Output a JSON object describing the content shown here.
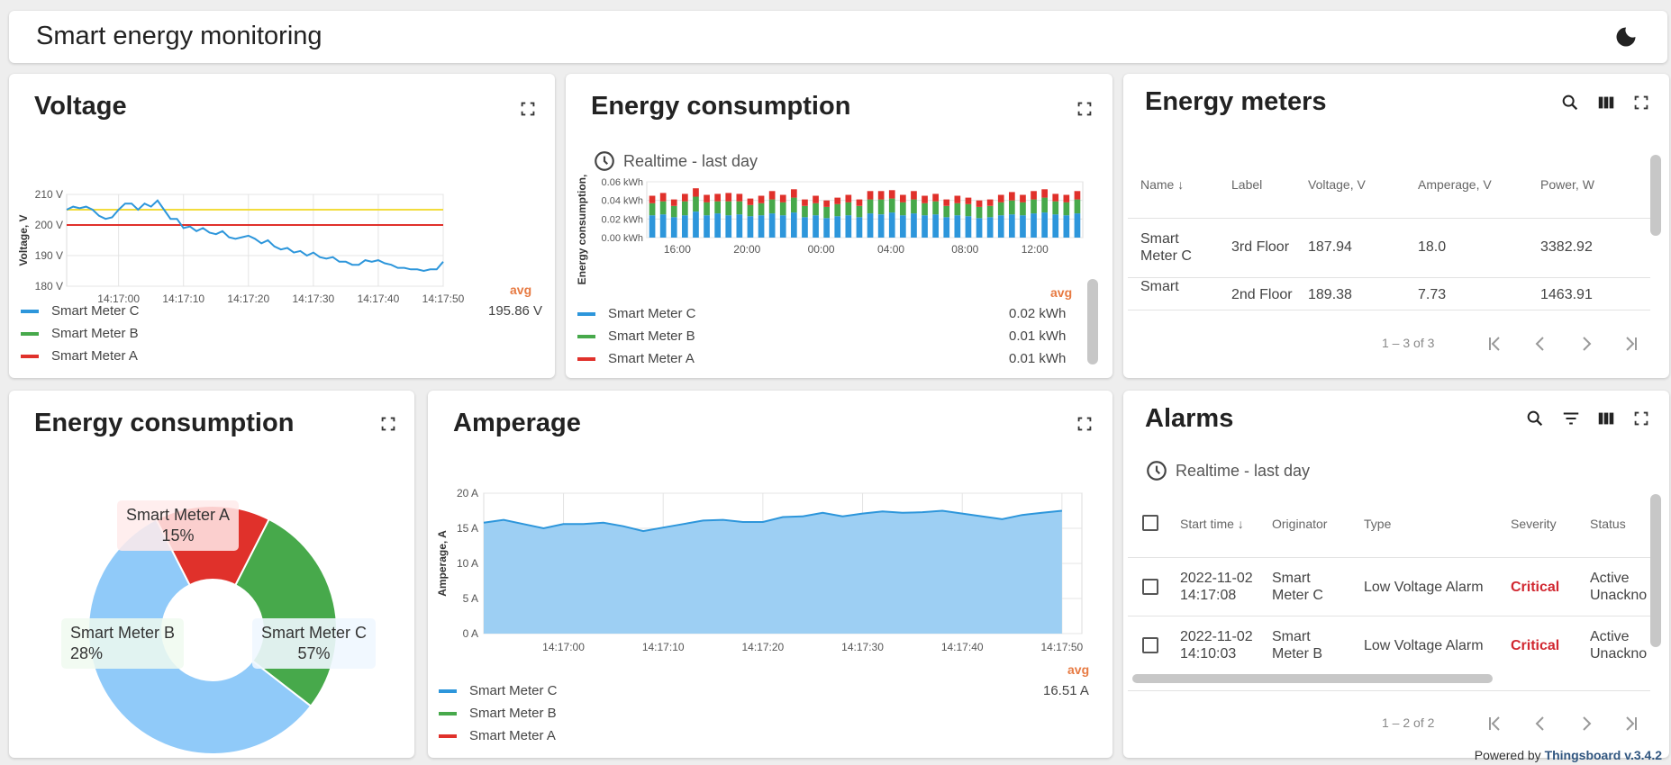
{
  "header": {
    "title": "Smart energy monitoring"
  },
  "voltage": {
    "title": "Voltage",
    "ylabel": "Voltage, V",
    "avg_label": "avg",
    "legend": [
      {
        "name": "Smart Meter C",
        "color": "#2d96db",
        "value": "195.86 V"
      },
      {
        "name": "Smart Meter B",
        "color": "#47a94b",
        "value": ""
      },
      {
        "name": "Smart Meter A",
        "color": "#e0312b",
        "value": ""
      }
    ]
  },
  "consumption_bar": {
    "title": "Energy consumption",
    "timewindow": "Realtime - last day",
    "ylabel": "Energy consumption,",
    "avg_label": "avg",
    "legend": [
      {
        "name": "Smart Meter C",
        "color": "#2d96db",
        "value": "0.02 kWh"
      },
      {
        "name": "Smart Meter B",
        "color": "#47a94b",
        "value": "0.01 kWh"
      },
      {
        "name": "Smart Meter A",
        "color": "#e0312b",
        "value": "0.01 kWh"
      }
    ]
  },
  "meters": {
    "title": "Energy meters",
    "columns": [
      "Name",
      "Label",
      "Voltage, V",
      "Amperage, V",
      "Power, W"
    ],
    "rows": [
      {
        "name": "Smart Meter C",
        "label": "3rd Floor",
        "voltage": "187.94",
        "amperage": "18.0",
        "power": "3382.92"
      },
      {
        "name": "Smart",
        "label": "2nd Floor",
        "voltage": "189.38",
        "amperage": "7.73",
        "power": "1463.91"
      }
    ],
    "pager": "1 – 3 of 3"
  },
  "consumption_pie": {
    "title": "Energy consumption",
    "labels": [
      {
        "name": "Smart Meter A",
        "pct": "15%"
      },
      {
        "name": "Smart Meter B",
        "pct": "28%"
      },
      {
        "name": "Smart Meter C",
        "pct": "57%"
      }
    ]
  },
  "amperage": {
    "title": "Amperage",
    "ylabel": "Amperage, A",
    "avg_label": "avg",
    "legend": [
      {
        "name": "Smart Meter C",
        "color": "#2d96db",
        "value": "16.51 A"
      },
      {
        "name": "Smart Meter B",
        "color": "#47a94b",
        "value": ""
      },
      {
        "name": "Smart Meter A",
        "color": "#e0312b",
        "value": ""
      }
    ]
  },
  "alarms": {
    "title": "Alarms",
    "timewindow": "Realtime - last day",
    "columns": [
      "Start time",
      "Originator",
      "Type",
      "Severity",
      "Status"
    ],
    "rows": [
      {
        "date": "2022-11-02",
        "time": "14:17:08",
        "orig1": "Smart",
        "orig2": "Meter C",
        "type": "Low Voltage Alarm",
        "severity": "Critical",
        "status1": "Active",
        "status2": "Unackno"
      },
      {
        "date": "2022-11-02",
        "time": "14:10:03",
        "orig1": "Smart",
        "orig2": "Meter B",
        "type": "Low Voltage Alarm",
        "severity": "Critical",
        "status1": "Active",
        "status2": "Unackno"
      }
    ],
    "pager": "1 – 2 of 2"
  },
  "footer": {
    "prefix": "Powered by",
    "link": "Thingsboard v.3.4.2"
  },
  "chart_data": [
    {
      "type": "line",
      "title": "Voltage",
      "ylabel": "Voltage, V",
      "ylim": [
        180,
        210
      ],
      "yticks": [
        "210 V",
        "200 V",
        "190 V",
        "180 V"
      ],
      "xticks": [
        "14:17:00",
        "14:17:10",
        "14:17:20",
        "14:17:30",
        "14:17:40",
        "14:17:50"
      ],
      "x_seconds": [
        52,
        53,
        54,
        55,
        56,
        57,
        58,
        59,
        60,
        61,
        62,
        63,
        64,
        65,
        66,
        67,
        68,
        69,
        70,
        71,
        72,
        73,
        74,
        75,
        76,
        77,
        78,
        79,
        80,
        81,
        82,
        83,
        84,
        85,
        86,
        87,
        88,
        89,
        90,
        91,
        92,
        93,
        94,
        95,
        96,
        97,
        98,
        99,
        100,
        101,
        102,
        103,
        104,
        105,
        106,
        107,
        108,
        109,
        110
      ],
      "series": [
        {
          "name": "Smart Meter C",
          "values": [
            205,
            206,
            205.5,
            206,
            205,
            203,
            202,
            202.5,
            205,
            207,
            207,
            205,
            207,
            206,
            208,
            205,
            202,
            202,
            199,
            199.5,
            198,
            199,
            197.5,
            197,
            198,
            196,
            195.5,
            196,
            196.5,
            195.5,
            194,
            195,
            193,
            192,
            192.5,
            191,
            191.5,
            190,
            191,
            189.5,
            189,
            189.5,
            188,
            188,
            187,
            187,
            188.5,
            188,
            188.5,
            187.5,
            187,
            186,
            186,
            185.5,
            185.5,
            185,
            185.5,
            185.5,
            188
          ]
        },
        {
          "name": "Smart Meter B",
          "values": [
            205,
            205
          ]
        },
        {
          "name": "Smart Meter A",
          "values": [
            200,
            200
          ]
        }
      ]
    },
    {
      "type": "bar",
      "title": "Energy consumption",
      "ylabel": "Energy consumption,",
      "ylim": [
        0,
        0.06
      ],
      "yticks": [
        "0.06 kWh",
        "0.04 kWh",
        "0.02 kWh",
        "0.00 kWh"
      ],
      "xticks": [
        "16:00",
        "20:00",
        "00:00",
        "04:00",
        "08:00",
        "12:00"
      ],
      "stacked": true,
      "series": [
        {
          "name": "Smart Meter C",
          "values": [
            0.024,
            0.025,
            0.022,
            0.024,
            0.028,
            0.024,
            0.026,
            0.024,
            0.025,
            0.023,
            0.024,
            0.026,
            0.024,
            0.027,
            0.022,
            0.024,
            0.021,
            0.023,
            0.024,
            0.022,
            0.026,
            0.025,
            0.027,
            0.024,
            0.026,
            0.024,
            0.025,
            0.022,
            0.024,
            0.023,
            0.021,
            0.022,
            0.024,
            0.025,
            0.024,
            0.026,
            0.027,
            0.025,
            0.024,
            0.026
          ]
        },
        {
          "name": "Smart Meter B",
          "values": [
            0.013,
            0.014,
            0.012,
            0.015,
            0.016,
            0.014,
            0.013,
            0.015,
            0.014,
            0.012,
            0.013,
            0.015,
            0.014,
            0.016,
            0.012,
            0.013,
            0.012,
            0.013,
            0.014,
            0.012,
            0.015,
            0.016,
            0.015,
            0.014,
            0.015,
            0.013,
            0.014,
            0.012,
            0.013,
            0.013,
            0.012,
            0.012,
            0.014,
            0.015,
            0.014,
            0.015,
            0.016,
            0.014,
            0.014,
            0.015
          ]
        },
        {
          "name": "Smart Meter A",
          "values": [
            0.008,
            0.009,
            0.007,
            0.008,
            0.009,
            0.008,
            0.008,
            0.009,
            0.008,
            0.007,
            0.008,
            0.009,
            0.008,
            0.009,
            0.007,
            0.008,
            0.007,
            0.007,
            0.008,
            0.007,
            0.009,
            0.009,
            0.009,
            0.008,
            0.009,
            0.008,
            0.008,
            0.007,
            0.008,
            0.007,
            0.007,
            0.007,
            0.008,
            0.009,
            0.008,
            0.009,
            0.009,
            0.008,
            0.008,
            0.009
          ]
        }
      ]
    },
    {
      "type": "pie",
      "title": "Energy consumption",
      "categories": [
        "Smart Meter A",
        "Smart Meter B",
        "Smart Meter C"
      ],
      "values": [
        15,
        28,
        57
      ],
      "colors": [
        "#e0312b",
        "#47a94b",
        "#90caf9"
      ]
    },
    {
      "type": "area",
      "title": "Amperage",
      "ylabel": "Amperage, A",
      "ylim": [
        0,
        20
      ],
      "yticks": [
        "20 A",
        "15 A",
        "10 A",
        "5 A",
        "0 A"
      ],
      "xticks": [
        "14:17:00",
        "14:17:10",
        "14:17:20",
        "14:17:30",
        "14:17:40",
        "14:17:50"
      ],
      "x_seconds": [
        52,
        54,
        56,
        58,
        60,
        62,
        64,
        66,
        68,
        70,
        72,
        74,
        76,
        78,
        80,
        82,
        84,
        86,
        88,
        90,
        92,
        94,
        96,
        98,
        100,
        102,
        104,
        106,
        108,
        110
      ],
      "series": [
        {
          "name": "Smart Meter C",
          "values": [
            15.8,
            16.2,
            15.6,
            15,
            15.6,
            15.6,
            15.8,
            15.3,
            14.6,
            15.1,
            15.6,
            16.1,
            16.2,
            15.9,
            15.9,
            16.6,
            16.7,
            17.2,
            16.7,
            17.1,
            17.4,
            17.2,
            17.3,
            17.5,
            17.1,
            16.7,
            16.3,
            16.9,
            17.2,
            17.5
          ]
        },
        {
          "name": "Smart Meter B",
          "values": []
        },
        {
          "name": "Smart Meter A",
          "values": []
        }
      ]
    }
  ]
}
